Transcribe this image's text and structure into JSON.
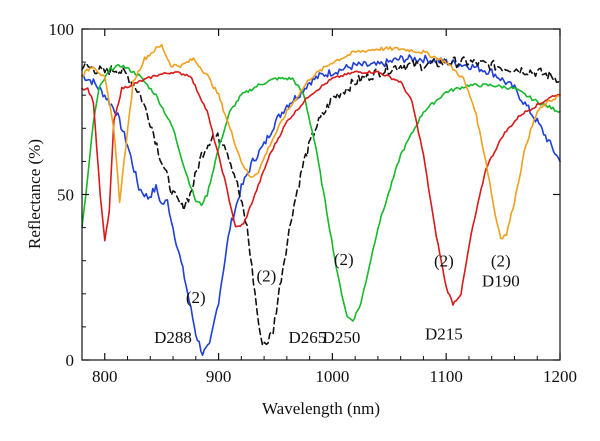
{
  "chart_data": {
    "type": "line",
    "title": "",
    "xlabel": "Wavelength (nm)",
    "ylabel": "Reflectance (%)",
    "xlim": [
      780,
      1200
    ],
    "ylim": [
      0,
      100
    ],
    "xticks": [
      800,
      900,
      1000,
      1100,
      1200
    ],
    "yticks": [
      0,
      50,
      100
    ],
    "grid": false,
    "legend": "none",
    "series": [
      {
        "color": "#1f3fd6",
        "dash": "solid",
        "noise": 1.2,
        "points": [
          [
            780,
            86
          ],
          [
            790,
            84
          ],
          [
            800,
            80
          ],
          [
            810,
            75
          ],
          [
            820,
            65
          ],
          [
            830,
            52
          ],
          [
            838,
            49
          ],
          [
            845,
            52
          ],
          [
            850,
            47
          ],
          [
            855,
            48
          ],
          [
            860,
            40
          ],
          [
            870,
            25
          ],
          [
            880,
            8
          ],
          [
            886,
            2
          ],
          [
            892,
            4
          ],
          [
            900,
            18
          ],
          [
            910,
            40
          ],
          [
            920,
            52
          ],
          [
            930,
            60
          ],
          [
            940,
            65
          ],
          [
            950,
            72
          ],
          [
            960,
            77
          ],
          [
            970,
            80
          ],
          [
            980,
            84
          ],
          [
            990,
            86
          ],
          [
            1000,
            87
          ],
          [
            1020,
            89
          ],
          [
            1040,
            89
          ],
          [
            1060,
            91
          ],
          [
            1080,
            91
          ],
          [
            1100,
            90
          ],
          [
            1120,
            89
          ],
          [
            1140,
            87
          ],
          [
            1160,
            82
          ],
          [
            1180,
            72
          ],
          [
            1190,
            66
          ],
          [
            1200,
            60
          ]
        ]
      },
      {
        "color": "#111111",
        "dash": "6,4",
        "noise": 1.6,
        "points": [
          [
            780,
            89
          ],
          [
            790,
            88
          ],
          [
            800,
            87
          ],
          [
            810,
            88
          ],
          [
            820,
            86
          ],
          [
            830,
            81
          ],
          [
            840,
            72
          ],
          [
            850,
            60
          ],
          [
            860,
            50
          ],
          [
            868,
            46
          ],
          [
            875,
            50
          ],
          [
            885,
            62
          ],
          [
            895,
            68
          ],
          [
            905,
            66
          ],
          [
            915,
            55
          ],
          [
            925,
            40
          ],
          [
            932,
            20
          ],
          [
            937,
            6
          ],
          [
            942,
            5
          ],
          [
            948,
            9
          ],
          [
            955,
            25
          ],
          [
            965,
            45
          ],
          [
            975,
            60
          ],
          [
            985,
            70
          ],
          [
            1000,
            79
          ],
          [
            1020,
            84
          ],
          [
            1040,
            87
          ],
          [
            1060,
            89
          ],
          [
            1080,
            89
          ],
          [
            1100,
            90
          ],
          [
            1120,
            90
          ],
          [
            1140,
            89
          ],
          [
            1160,
            88
          ],
          [
            1180,
            87
          ],
          [
            1200,
            85
          ]
        ]
      },
      {
        "color": "#17b82b",
        "dash": "solid",
        "noise": 0.5,
        "points": [
          [
            780,
            40
          ],
          [
            785,
            55
          ],
          [
            790,
            72
          ],
          [
            795,
            82
          ],
          [
            805,
            88
          ],
          [
            815,
            89
          ],
          [
            830,
            86
          ],
          [
            845,
            80
          ],
          [
            860,
            70
          ],
          [
            870,
            58
          ],
          [
            880,
            48
          ],
          [
            885,
            47
          ],
          [
            890,
            50
          ],
          [
            900,
            64
          ],
          [
            910,
            75
          ],
          [
            920,
            80
          ],
          [
            935,
            83
          ],
          [
            950,
            85
          ],
          [
            965,
            85
          ],
          [
            975,
            80
          ],
          [
            985,
            65
          ],
          [
            995,
            45
          ],
          [
            1005,
            25
          ],
          [
            1013,
            13
          ],
          [
            1018,
            12
          ],
          [
            1025,
            17
          ],
          [
            1040,
            40
          ],
          [
            1060,
            62
          ],
          [
            1080,
            75
          ],
          [
            1100,
            81
          ],
          [
            1120,
            83
          ],
          [
            1140,
            83
          ],
          [
            1160,
            82
          ],
          [
            1180,
            78
          ],
          [
            1200,
            75
          ]
        ]
      },
      {
        "color": "#d81a1a",
        "dash": "solid",
        "noise": 0.4,
        "points": [
          [
            780,
            82
          ],
          [
            785,
            82
          ],
          [
            790,
            78
          ],
          [
            796,
            50
          ],
          [
            800,
            36
          ],
          [
            804,
            45
          ],
          [
            808,
            72
          ],
          [
            815,
            82
          ],
          [
            830,
            84
          ],
          [
            845,
            86
          ],
          [
            860,
            87
          ],
          [
            875,
            86
          ],
          [
            890,
            75
          ],
          [
            905,
            55
          ],
          [
            915,
            40
          ],
          [
            922,
            41
          ],
          [
            932,
            50
          ],
          [
            945,
            62
          ],
          [
            960,
            72
          ],
          [
            980,
            80
          ],
          [
            1000,
            85
          ],
          [
            1020,
            87
          ],
          [
            1040,
            87
          ],
          [
            1060,
            84
          ],
          [
            1070,
            78
          ],
          [
            1080,
            62
          ],
          [
            1090,
            40
          ],
          [
            1100,
            22
          ],
          [
            1106,
            17
          ],
          [
            1113,
            20
          ],
          [
            1122,
            38
          ],
          [
            1135,
            58
          ],
          [
            1150,
            68
          ],
          [
            1165,
            74
          ],
          [
            1180,
            77
          ],
          [
            1195,
            80
          ],
          [
            1200,
            80
          ]
        ]
      },
      {
        "color": "#f0a01e",
        "dash": "solid",
        "noise": 0.6,
        "points": [
          [
            780,
            86
          ],
          [
            790,
            89
          ],
          [
            800,
            85
          ],
          [
            808,
            70
          ],
          [
            813,
            48
          ],
          [
            817,
            60
          ],
          [
            825,
            84
          ],
          [
            835,
            91
          ],
          [
            845,
            94
          ],
          [
            850,
            95
          ],
          [
            858,
            89
          ],
          [
            868,
            89
          ],
          [
            878,
            91
          ],
          [
            890,
            86
          ],
          [
            900,
            80
          ],
          [
            910,
            70
          ],
          [
            920,
            60
          ],
          [
            928,
            55
          ],
          [
            935,
            57
          ],
          [
            945,
            65
          ],
          [
            960,
            75
          ],
          [
            980,
            85
          ],
          [
            1000,
            90
          ],
          [
            1020,
            93
          ],
          [
            1040,
            94
          ],
          [
            1060,
            94
          ],
          [
            1080,
            93
          ],
          [
            1100,
            90
          ],
          [
            1115,
            85
          ],
          [
            1125,
            76
          ],
          [
            1135,
            60
          ],
          [
            1143,
            44
          ],
          [
            1148,
            37
          ],
          [
            1153,
            38
          ],
          [
            1160,
            48
          ],
          [
            1170,
            65
          ],
          [
            1180,
            75
          ],
          [
            1190,
            78
          ],
          [
            1200,
            80
          ]
        ]
      }
    ],
    "annotations": [
      {
        "text": "(2)",
        "x": 880,
        "y": 19
      },
      {
        "text": "D288",
        "x": 860,
        "y": 7
      },
      {
        "text": "(2)",
        "x": 942,
        "y": 25.5
      },
      {
        "text": "D265",
        "x": 978,
        "y": 7
      },
      {
        "text": "(2)",
        "x": 1010,
        "y": 30.5
      },
      {
        "text": "D250",
        "x": 1008,
        "y": 7
      },
      {
        "text": "(2)",
        "x": 1098,
        "y": 30
      },
      {
        "text": "D215",
        "x": 1098,
        "y": 8
      },
      {
        "text": "(2)",
        "x": 1148,
        "y": 30
      },
      {
        "text": "D190",
        "x": 1148,
        "y": 24
      }
    ]
  }
}
